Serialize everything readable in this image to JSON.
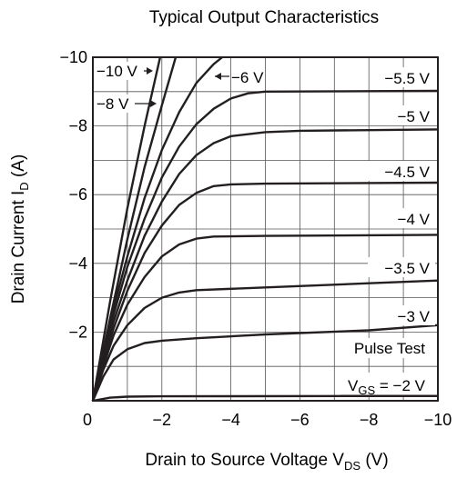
{
  "chart_data": {
    "type": "line",
    "title": "Typical Output Characteristics",
    "xlabel": {
      "main": "Drain to Source Voltage  V",
      "sub": "DS",
      "unit": "  (V)"
    },
    "ylabel": {
      "main": "Drain Current  I",
      "sub": "D",
      "unit": "  (A)"
    },
    "xlim": [
      0,
      -10
    ],
    "ylim": [
      0,
      -10
    ],
    "x_ticks": [
      "0",
      "−2",
      "−4",
      "−6",
      "−8",
      "−10"
    ],
    "y_ticks": [
      "0",
      "−2",
      "−4",
      "−6",
      "−8",
      "−10"
    ],
    "x_tick_values": [
      0,
      -2,
      -4,
      -6,
      -8,
      -10
    ],
    "y_tick_values": [
      0,
      -2,
      -4,
      -6,
      -8,
      -10
    ],
    "grid": true,
    "annotations": {
      "pulse_test": "Pulse Test",
      "vgs_main": "V",
      "vgs_sub": "GS",
      "vgs_value": " = −2 V"
    },
    "series": [
      {
        "label": "−2 V",
        "points": [
          [
            0,
            0
          ],
          [
            -0.5,
            -0.09
          ],
          [
            -1,
            -0.12
          ],
          [
            -2,
            -0.13
          ],
          [
            -10,
            -0.14
          ]
        ]
      },
      {
        "label": "−3 V",
        "points": [
          [
            0,
            0
          ],
          [
            -0.3,
            -0.7
          ],
          [
            -0.6,
            -1.2
          ],
          [
            -1,
            -1.5
          ],
          [
            -1.5,
            -1.68
          ],
          [
            -2,
            -1.75
          ],
          [
            -3,
            -1.82
          ],
          [
            -5,
            -1.93
          ],
          [
            -8,
            -2.05
          ],
          [
            -10,
            -2.2
          ]
        ]
      },
      {
        "label": "−3.5 V",
        "points": [
          [
            0,
            0
          ],
          [
            -0.3,
            -0.9
          ],
          [
            -0.6,
            -1.6
          ],
          [
            -1,
            -2.2
          ],
          [
            -1.5,
            -2.7
          ],
          [
            -2,
            -3.0
          ],
          [
            -2.5,
            -3.15
          ],
          [
            -3,
            -3.22
          ],
          [
            -5,
            -3.3
          ],
          [
            -8,
            -3.42
          ],
          [
            -10,
            -3.5
          ]
        ]
      },
      {
        "label": "−4 V",
        "points": [
          [
            0,
            0
          ],
          [
            -0.3,
            -1.0
          ],
          [
            -0.6,
            -1.9
          ],
          [
            -1,
            -2.8
          ],
          [
            -1.5,
            -3.6
          ],
          [
            -2,
            -4.2
          ],
          [
            -2.5,
            -4.55
          ],
          [
            -3,
            -4.72
          ],
          [
            -3.5,
            -4.78
          ],
          [
            -5,
            -4.8
          ],
          [
            -10,
            -4.83
          ]
        ]
      },
      {
        "label": "−4.5 V",
        "points": [
          [
            0,
            0
          ],
          [
            -0.3,
            -1.1
          ],
          [
            -0.6,
            -2.1
          ],
          [
            -1,
            -3.2
          ],
          [
            -1.5,
            -4.3
          ],
          [
            -2,
            -5.1
          ],
          [
            -2.5,
            -5.7
          ],
          [
            -3,
            -6.05
          ],
          [
            -3.5,
            -6.25
          ],
          [
            -4,
            -6.3
          ],
          [
            -5,
            -6.32
          ],
          [
            -10,
            -6.35
          ]
        ]
      },
      {
        "label": "−5 V",
        "points": [
          [
            0,
            0
          ],
          [
            -0.3,
            -1.2
          ],
          [
            -0.6,
            -2.3
          ],
          [
            -1,
            -3.5
          ],
          [
            -1.5,
            -4.8
          ],
          [
            -2,
            -5.8
          ],
          [
            -2.5,
            -6.6
          ],
          [
            -3,
            -7.15
          ],
          [
            -3.5,
            -7.5
          ],
          [
            -4,
            -7.7
          ],
          [
            -5,
            -7.82
          ],
          [
            -6,
            -7.86
          ],
          [
            -10,
            -7.9
          ]
        ]
      },
      {
        "label": "−5.5 V",
        "points": [
          [
            0,
            0
          ],
          [
            -0.3,
            -1.3
          ],
          [
            -0.6,
            -2.5
          ],
          [
            -1,
            -3.9
          ],
          [
            -1.5,
            -5.3
          ],
          [
            -2,
            -6.5
          ],
          [
            -2.5,
            -7.4
          ],
          [
            -3,
            -8.05
          ],
          [
            -3.5,
            -8.5
          ],
          [
            -4,
            -8.8
          ],
          [
            -4.5,
            -8.95
          ],
          [
            -5,
            -9.0
          ],
          [
            -10,
            -9.02
          ]
        ]
      },
      {
        "label": "−6 V",
        "points": [
          [
            0,
            0
          ],
          [
            -0.3,
            -1.4
          ],
          [
            -0.6,
            -2.7
          ],
          [
            -1,
            -4.2
          ],
          [
            -1.5,
            -5.9
          ],
          [
            -2,
            -7.3
          ],
          [
            -2.5,
            -8.4
          ],
          [
            -3,
            -9.25
          ],
          [
            -3.5,
            -9.8
          ],
          [
            -3.75,
            -10.0
          ]
        ]
      },
      {
        "label": "−8 V",
        "points": [
          [
            0,
            0
          ],
          [
            -0.5,
            -2.4
          ],
          [
            -1,
            -4.7
          ],
          [
            -1.5,
            -6.8
          ],
          [
            -2,
            -8.6
          ],
          [
            -2.4,
            -10.0
          ]
        ]
      },
      {
        "label": "−10 V",
        "points": [
          [
            0,
            0
          ],
          [
            -0.5,
            -2.9
          ],
          [
            -1,
            -5.6
          ],
          [
            -1.5,
            -8.0
          ],
          [
            -1.95,
            -10.0
          ]
        ]
      }
    ]
  }
}
